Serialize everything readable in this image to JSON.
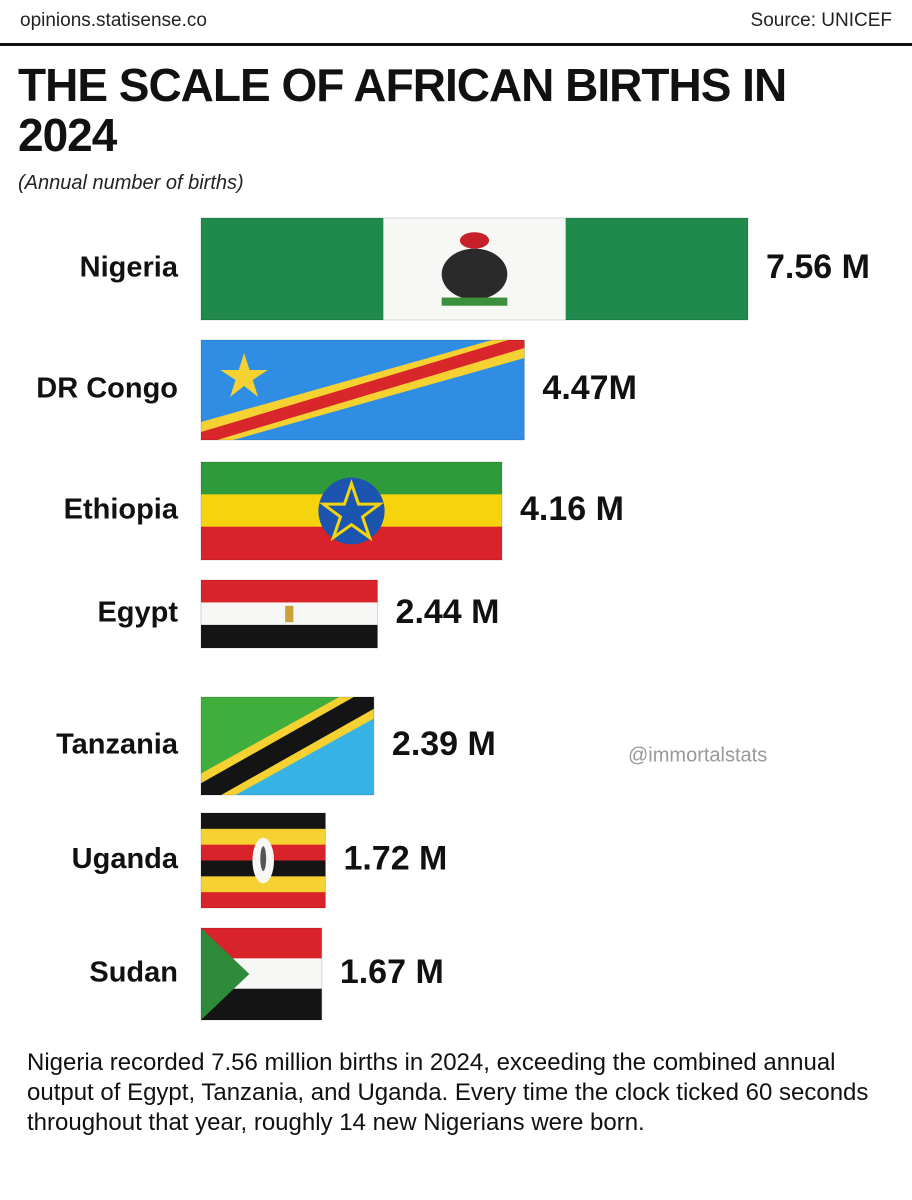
{
  "header": {
    "site": "opinions.statisense.co",
    "source": "Source: UNICEF"
  },
  "chart_data": {
    "type": "bar",
    "orientation": "horizontal",
    "title": "THE SCALE OF AFRICAN BIRTHS IN 2024",
    "subtitle": "(Annual number of births)",
    "categories": [
      "Nigeria",
      "DR Congo",
      "Ethiopia",
      "Egypt",
      "Tanzania",
      "Uganda",
      "Sudan"
    ],
    "values": [
      7.56,
      4.47,
      4.16,
      2.44,
      2.39,
      1.72,
      1.67
    ],
    "value_labels": [
      "7.56 M",
      "4.47M",
      "4.16 M",
      "2.44 M",
      "2.39 M",
      "1.72 M",
      "1.67 M"
    ],
    "annotation": "@immortalstats"
  },
  "note": "Nigeria recorded 7.56 million births in 2024, exceeding the combined annual output of Egypt, Tanzania, and Uganda. Every time the clock ticked 60 seconds throughout that year, roughly 14 new Nigerians were born."
}
